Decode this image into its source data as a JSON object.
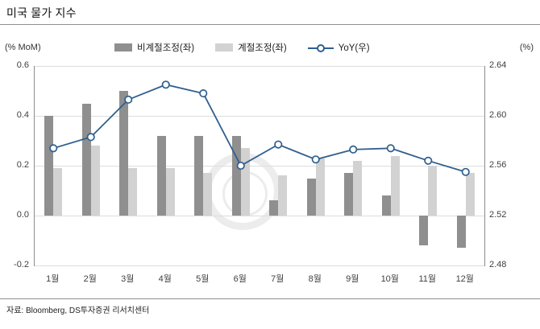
{
  "title": "미국 물가 지수",
  "source": "자료: Bloomberg, DS투자증권 리서치센터",
  "left_unit": "(% MoM)",
  "right_unit": "(%)",
  "chart_data": {
    "type": "bar",
    "subtype": "grouped bars with overlaid line (dual axis)",
    "title": "미국 물가 지수",
    "categories": [
      "1월",
      "2월",
      "3월",
      "4월",
      "5월",
      "6월",
      "7월",
      "8월",
      "9월",
      "10월",
      "11월",
      "12월"
    ],
    "series": [
      {
        "name": "비계절조정(좌)",
        "type": "bar",
        "axis": "left",
        "color": "#8f8f8f",
        "values": [
          0.4,
          0.45,
          0.5,
          0.32,
          0.32,
          0.32,
          0.06,
          0.15,
          0.17,
          0.08,
          -0.12,
          -0.13
        ]
      },
      {
        "name": "계절조정(좌)",
        "type": "bar",
        "axis": "left",
        "color": "#d2d2d2",
        "values": [
          0.19,
          0.28,
          0.19,
          0.19,
          0.17,
          0.27,
          0.16,
          0.23,
          0.22,
          0.24,
          0.2,
          0.17
        ]
      },
      {
        "name": "YoY(우)",
        "type": "line",
        "axis": "right",
        "color": "#2f5f8f",
        "values": [
          2.574,
          2.583,
          2.613,
          2.625,
          2.618,
          2.56,
          2.577,
          2.565,
          2.573,
          2.574,
          2.564,
          2.555
        ]
      }
    ],
    "left_axis": {
      "label": "(% MoM)",
      "min": -0.2,
      "max": 0.6,
      "ticks": [
        "0.6",
        "0.4",
        "0.2",
        "0.0",
        "-0.2"
      ]
    },
    "right_axis": {
      "label": "(%)",
      "min": 2.48,
      "max": 2.64,
      "ticks": [
        "2.64",
        "2.60",
        "2.56",
        "2.52",
        "2.48"
      ]
    },
    "grid": true,
    "legend_position": "top"
  }
}
